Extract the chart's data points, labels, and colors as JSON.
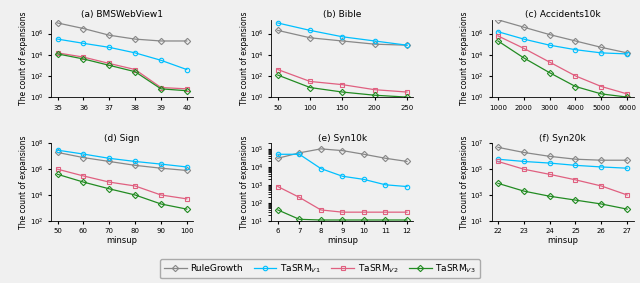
{
  "subplots": [
    {
      "title": "(a) BMSWebView1",
      "xlabel": "",
      "xticks": [
        35,
        36,
        37,
        38,
        39,
        40
      ],
      "RuleGrowth": {
        "x": [
          35,
          36,
          37,
          38,
          39,
          40
        ],
        "y": [
          10000000.0,
          3000000.0,
          700000.0,
          300000.0,
          200000.0,
          200000.0
        ]
      },
      "TaSRMv1": {
        "x": [
          35,
          36,
          37,
          38,
          39,
          40
        ],
        "y": [
          300000.0,
          120000.0,
          50000.0,
          15000.0,
          3000.0,
          400.0
        ]
      },
      "TaSRMv2": {
        "x": [
          35,
          36,
          37,
          38,
          39,
          40
        ],
        "y": [
          15000.0,
          6000.0,
          1500.0,
          400.0,
          8,
          6
        ]
      },
      "TaSRMv3": {
        "x": [
          35,
          36,
          37,
          38,
          39,
          40
        ],
        "y": [
          12000.0,
          4000.0,
          1000.0,
          250.0,
          6,
          4
        ]
      },
      "ylim": [
        1,
        20000000.0
      ]
    },
    {
      "title": "(b) Bible",
      "xlabel": "",
      "xticks": [
        50,
        100,
        150,
        200,
        250
      ],
      "RuleGrowth": {
        "x": [
          50,
          100,
          150,
          200,
          250
        ],
        "y": [
          2000000.0,
          400000.0,
          200000.0,
          100000.0,
          80000.0
        ]
      },
      "TaSRMv1": {
        "x": [
          50,
          100,
          150,
          200,
          250
        ],
        "y": [
          10000000.0,
          2000000.0,
          500000.0,
          200000.0,
          80000.0
        ]
      },
      "TaSRMv2": {
        "x": [
          50,
          100,
          150,
          200,
          250
        ],
        "y": [
          400.0,
          30.0,
          15.0,
          5,
          3
        ]
      },
      "TaSRMv3": {
        "x": [
          50,
          100,
          150,
          200,
          250
        ],
        "y": [
          120.0,
          8,
          3,
          1.5,
          1
        ]
      },
      "ylim": [
        1,
        20000000.0
      ]
    },
    {
      "title": "(c) Accidents10k",
      "xlabel": "",
      "xticks": [
        1000,
        2000,
        3000,
        4000,
        5000,
        6000
      ],
      "RuleGrowth": {
        "x": [
          1000,
          2000,
          3000,
          4000,
          5000,
          6000
        ],
        "y": [
          20000000.0,
          4000000.0,
          800000.0,
          200000.0,
          50000.0,
          15000.0
        ]
      },
      "TaSRMv1": {
        "x": [
          1000,
          2000,
          3000,
          4000,
          5000,
          6000
        ],
        "y": [
          1500000.0,
          300000.0,
          80000.0,
          30000.0,
          15000.0,
          12000.0
        ]
      },
      "TaSRMv2": {
        "x": [
          1000,
          2000,
          3000,
          4000,
          5000,
          6000
        ],
        "y": [
          600000.0,
          40000.0,
          2000.0,
          100.0,
          10.0,
          2
        ]
      },
      "TaSRMv3": {
        "x": [
          1000,
          2000,
          3000,
          4000,
          5000,
          6000
        ],
        "y": [
          200000.0,
          5000.0,
          200.0,
          10.0,
          2,
          1
        ]
      },
      "ylim": [
        1,
        20000000.0
      ]
    },
    {
      "title": "(d) Sign",
      "xlabel": "minsup",
      "xticks": [
        50,
        60,
        70,
        80,
        90,
        100
      ],
      "RuleGrowth": {
        "x": [
          50,
          60,
          70,
          80,
          90,
          100
        ],
        "y": [
          20000000.0,
          8000000.0,
          4000000.0,
          2000000.0,
          1200000.0,
          800000.0
        ]
      },
      "TaSRMv1": {
        "x": [
          50,
          60,
          70,
          80,
          90,
          100
        ],
        "y": [
          30000000.0,
          15000000.0,
          7000000.0,
          4000000.0,
          2500000.0,
          1500000.0
        ]
      },
      "TaSRMv2": {
        "x": [
          50,
          60,
          70,
          80,
          90,
          100
        ],
        "y": [
          1000000.0,
          300000.0,
          100000.0,
          50000.0,
          10000.0,
          5000.0
        ]
      },
      "TaSRMv3": {
        "x": [
          50,
          60,
          70,
          80,
          90,
          100
        ],
        "y": [
          400000.0,
          100000.0,
          30000.0,
          10000.0,
          2000.0,
          800.0
        ]
      },
      "ylim": [
        100.0,
        100000000.0
      ]
    },
    {
      "title": "(e) Syn10k",
      "xlabel": "minsup",
      "xticks": [
        6,
        7,
        8,
        9,
        10,
        11,
        12
      ],
      "RuleGrowth": {
        "x": [
          6,
          7,
          8,
          9,
          10,
          11,
          12
        ],
        "y": [
          30000.0,
          60000.0,
          100000.0,
          80000.0,
          50000.0,
          30000.0,
          20000.0
        ]
      },
      "TaSRMv1": {
        "x": [
          6,
          7,
          8,
          9,
          10,
          11,
          12
        ],
        "y": [
          50000.0,
          50000.0,
          8000.0,
          3000.0,
          2000.0,
          1000.0,
          800.0
        ]
      },
      "TaSRMv2": {
        "x": [
          6,
          7,
          8,
          9,
          10,
          11,
          12
        ],
        "y": [
          800.0,
          200.0,
          40.0,
          30.0,
          30.0,
          30.0,
          30.0
        ]
      },
      "TaSRMv3": {
        "x": [
          6,
          7,
          8,
          9,
          10,
          11,
          12
        ],
        "y": [
          40.0,
          12.0,
          11.0,
          11.0,
          11.0,
          11.0,
          11.0
        ]
      },
      "ylim": [
        10.0,
        200000.0
      ]
    },
    {
      "title": "(f) Syn20k",
      "xlabel": "minsup",
      "xticks": [
        22,
        23,
        24,
        25,
        26,
        27
      ],
      "RuleGrowth": {
        "x": [
          22,
          23,
          24,
          25,
          26,
          27
        ],
        "y": [
          5000000.0,
          2000000.0,
          1000000.0,
          600000.0,
          500000.0,
          500000.0
        ]
      },
      "TaSRMv1": {
        "x": [
          22,
          23,
          24,
          25,
          26,
          27
        ],
        "y": [
          600000.0,
          400000.0,
          300000.0,
          200000.0,
          150000.0,
          120000.0
        ]
      },
      "TaSRMv2": {
        "x": [
          22,
          23,
          24,
          25,
          26,
          27
        ],
        "y": [
          400000.0,
          100000.0,
          40000.0,
          15000.0,
          5000.0,
          1000.0
        ]
      },
      "TaSRMv3": {
        "x": [
          22,
          23,
          24,
          25,
          26,
          27
        ],
        "y": [
          8000.0,
          2000.0,
          800.0,
          400.0,
          200.0,
          80.0
        ]
      },
      "ylim": [
        10.0,
        10000000.0
      ]
    }
  ],
  "series": [
    "RuleGrowth",
    "TaSRMv1",
    "TaSRMv2",
    "TaSRMv3"
  ],
  "colors": {
    "RuleGrowth": "#888888",
    "TaSRMv1": "#00bfff",
    "TaSRMv2": "#e06080",
    "TaSRMv3": "#228b22"
  },
  "markers": {
    "RuleGrowth": "D",
    "TaSRMv1": "o",
    "TaSRMv2": "s",
    "TaSRMv3": "D"
  },
  "legend_labels": [
    "RuleGrowth",
    "TaSRM$_{V1}$",
    "TaSRM$_{V2}$",
    "TaSRM$_{V3}$"
  ],
  "ylabel": "The count of expansions",
  "bg_color": "#f0f0f0",
  "figsize": [
    6.4,
    2.83
  ]
}
